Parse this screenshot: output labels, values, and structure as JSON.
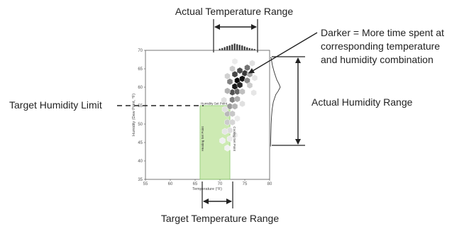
{
  "chart_data": {
    "type": "heatmap",
    "xlabel": "Temperature (°F)",
    "ylabel": "Humidity (Dew Point, °F)",
    "xlim": [
      55,
      80
    ],
    "ylim": [
      35,
      70
    ],
    "xticks": [
      "55",
      "60",
      "65",
      "70",
      "75",
      "80"
    ],
    "yticks": [
      "35",
      "40",
      "45",
      "50",
      "55",
      "60",
      "65",
      "70"
    ],
    "grid": false,
    "target_zone": {
      "x_range": [
        66,
        72
      ],
      "y_range": [
        35,
        55
      ],
      "color": "#c5e7a6",
      "edge_color": "#8cc96a"
    },
    "zone_labels": {
      "top": "Humidity Set Point",
      "left": "Heating Set Point",
      "right": "Cooling Set Point"
    },
    "hex_bins": [
      {
        "t": 73.5,
        "h": 61.8,
        "density": 0.97
      },
      {
        "t": 74.5,
        "h": 62.3,
        "density": 0.92
      },
      {
        "t": 73.0,
        "h": 60.2,
        "density": 0.9
      },
      {
        "t": 74.0,
        "h": 60.6,
        "density": 0.85
      },
      {
        "t": 75.0,
        "h": 63.8,
        "density": 0.78
      },
      {
        "t": 74.0,
        "h": 64.5,
        "density": 0.7
      },
      {
        "t": 73.0,
        "h": 63.5,
        "density": 0.72
      },
      {
        "t": 75.5,
        "h": 65.3,
        "density": 0.55
      },
      {
        "t": 72.5,
        "h": 58.6,
        "density": 0.68
      },
      {
        "t": 73.5,
        "h": 58.8,
        "density": 0.6
      },
      {
        "t": 72.0,
        "h": 61.5,
        "density": 0.5
      },
      {
        "t": 75.5,
        "h": 61.8,
        "density": 0.45
      },
      {
        "t": 76.0,
        "h": 63.5,
        "density": 0.35
      },
      {
        "t": 72.5,
        "h": 56.6,
        "density": 0.5
      },
      {
        "t": 73.5,
        "h": 56.8,
        "density": 0.32
      },
      {
        "t": 72.0,
        "h": 54.8,
        "density": 0.4
      },
      {
        "t": 73.0,
        "h": 54.8,
        "density": 0.3
      },
      {
        "t": 71.5,
        "h": 52.8,
        "density": 0.28
      },
      {
        "t": 72.5,
        "h": 52.8,
        "density": 0.22
      },
      {
        "t": 71.5,
        "h": 50.5,
        "density": 0.2
      },
      {
        "t": 72.5,
        "h": 50.5,
        "density": 0.16
      },
      {
        "t": 72.0,
        "h": 48.3,
        "density": 0.13
      },
      {
        "t": 71.0,
        "h": 48.0,
        "density": 0.1
      },
      {
        "t": 72.0,
        "h": 46.0,
        "density": 0.08
      },
      {
        "t": 73.0,
        "h": 47.0,
        "density": 0.07
      },
      {
        "t": 71.5,
        "h": 59.0,
        "density": 0.3
      },
      {
        "t": 74.5,
        "h": 58.8,
        "density": 0.25
      },
      {
        "t": 76.0,
        "h": 60.5,
        "density": 0.2
      },
      {
        "t": 71.5,
        "h": 63.0,
        "density": 0.18
      },
      {
        "t": 72.5,
        "h": 65.0,
        "density": 0.2
      },
      {
        "t": 76.5,
        "h": 66.5,
        "density": 0.12
      },
      {
        "t": 76.8,
        "h": 58.5,
        "density": 0.1
      },
      {
        "t": 70.8,
        "h": 56.5,
        "density": 0.12
      },
      {
        "t": 74.5,
        "h": 55.5,
        "density": 0.12
      },
      {
        "t": 77.0,
        "h": 62.5,
        "density": 0.1
      },
      {
        "t": 73.0,
        "h": 67.0,
        "density": 0.08
      },
      {
        "t": 71.0,
        "h": 54.0,
        "density": 0.12
      },
      {
        "t": 73.5,
        "h": 51.5,
        "density": 0.08
      },
      {
        "t": 70.5,
        "h": 45.5,
        "density": 0.06
      },
      {
        "t": 71.5,
        "h": 43.5,
        "density": 0.05
      }
    ],
    "marginal_temperature": [
      {
        "t": 70.0,
        "v": 0.2
      },
      {
        "t": 70.5,
        "v": 0.3
      },
      {
        "t": 71.0,
        "v": 0.45
      },
      {
        "t": 71.5,
        "v": 0.6
      },
      {
        "t": 72.0,
        "v": 0.7
      },
      {
        "t": 72.5,
        "v": 0.85
      },
      {
        "t": 73.0,
        "v": 1.0
      },
      {
        "t": 73.5,
        "v": 0.9
      },
      {
        "t": 74.0,
        "v": 0.8
      },
      {
        "t": 74.5,
        "v": 0.7
      },
      {
        "t": 75.0,
        "v": 0.55
      },
      {
        "t": 75.5,
        "v": 0.4
      },
      {
        "t": 76.0,
        "v": 0.3
      },
      {
        "t": 76.5,
        "v": 0.22
      },
      {
        "t": 77.0,
        "v": 0.15
      }
    ],
    "marginal_humidity": [
      {
        "h": 44,
        "v": 0.02
      },
      {
        "h": 46,
        "v": 0.04
      },
      {
        "h": 48,
        "v": 0.06
      },
      {
        "h": 50,
        "v": 0.08
      },
      {
        "h": 52,
        "v": 0.12
      },
      {
        "h": 54,
        "v": 0.18
      },
      {
        "h": 56,
        "v": 0.3
      },
      {
        "h": 58,
        "v": 0.55
      },
      {
        "h": 59,
        "v": 0.8
      },
      {
        "h": 60,
        "v": 1.0
      },
      {
        "h": 61,
        "v": 0.85
      },
      {
        "h": 62,
        "v": 0.65
      },
      {
        "h": 64,
        "v": 0.4
      },
      {
        "h": 66,
        "v": 0.2
      },
      {
        "h": 68,
        "v": 0.08
      }
    ],
    "colors": {
      "hex_dark": "#000000",
      "hex_light": "#ffffff",
      "target_line": "#222222",
      "arrow": "#222222"
    }
  },
  "annotations": {
    "actual_temp_range": "Actual Temperature Range",
    "darker_line1": "Darker = More time spent at",
    "darker_line2": "corresponding temperature",
    "darker_line3": "and humidity combination",
    "target_humidity_limit": "Target Humidity Limit",
    "actual_humidity_range": "Actual Humidity Range",
    "target_temp_range": "Target Temperature Range"
  }
}
